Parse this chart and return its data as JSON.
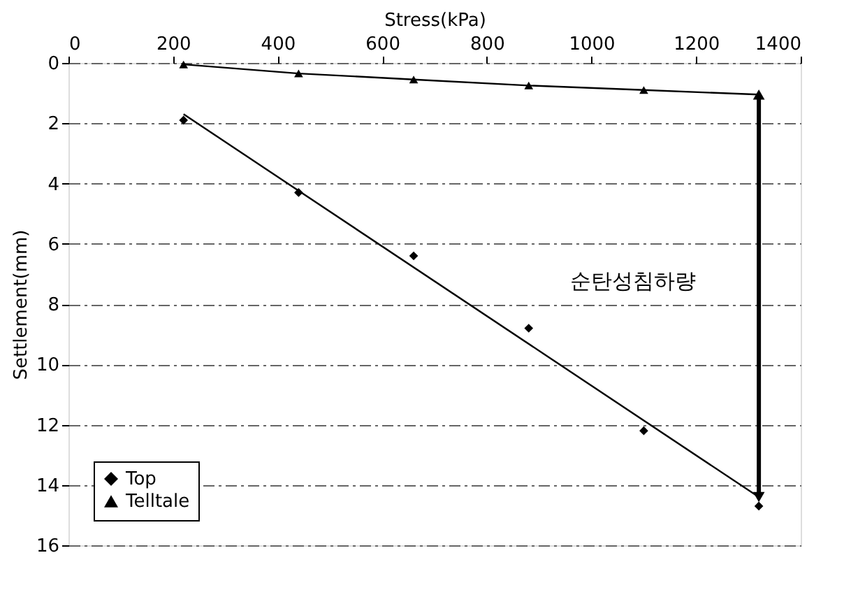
{
  "chart_data": {
    "type": "scatter",
    "xlabel": "Stress(kPa)",
    "ylabel": "Settlement(mm)",
    "xlim": [
      0,
      1400
    ],
    "xticks": [
      0,
      200,
      400,
      600,
      800,
      1000,
      1200,
      1400
    ],
    "ylim": [
      16,
      0
    ],
    "yticks": [
      0,
      2,
      4,
      6,
      8,
      10,
      12,
      14,
      16
    ],
    "grid": "y",
    "legend": "bottom left",
    "series": [
      {
        "name": "Top",
        "color": "#000000",
        "type": "scatter",
        "marker": "diamond",
        "x": [
          220,
          440,
          660,
          880,
          1100,
          1320
        ],
        "values": [
          1.9,
          4.3,
          6.4,
          8.8,
          12.2,
          14.7
        ]
      },
      {
        "name": "Telltale",
        "color": "#000000",
        "type": "line",
        "marker": "triangle",
        "x": [
          220,
          440,
          660,
          880,
          1100,
          1320
        ],
        "values": [
          0.05,
          0.35,
          0.55,
          0.75,
          0.9,
          1.05
        ]
      },
      {
        "color": "#000000",
        "type": "line",
        "x": [
          220,
          1320
        ],
        "values": [
          1.7,
          14.4
        ]
      },
      {
        "color": "#000000",
        "type": "line",
        "marker": "triangle",
        "x": [
          1320,
          1320
        ],
        "values": [
          1.05,
          14.4
        ]
      }
    ],
    "annotations": [
      "순탄성침하량"
    ]
  }
}
